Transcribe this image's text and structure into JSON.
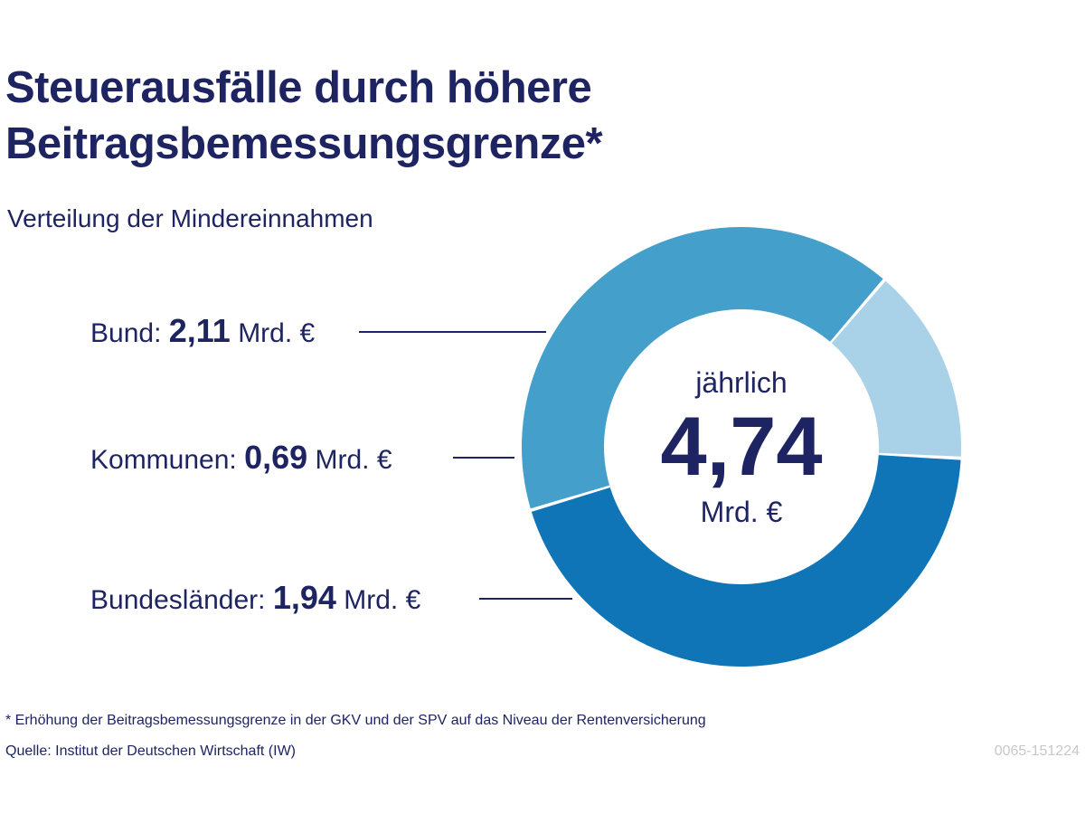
{
  "chart_data": {
    "type": "pie",
    "variant": "donut",
    "title": "Steuerausfälle durch höhere Beitragsbemessungsgrenze*",
    "subtitle": "Verteilung der Mindereinnahmen",
    "unit": "Mrd. €",
    "categories": [
      "Bund",
      "Bundesländer",
      "Kommunen"
    ],
    "values": [
      2.11,
      1.94,
      0.69
    ],
    "colors": [
      "#0f75b7",
      "#459fcb",
      "#a9d1e7"
    ],
    "total": {
      "prefix": "jährlich",
      "value": "4,74",
      "unit": "Mrd. €"
    },
    "labels": [
      {
        "name": "Bund:",
        "value": "2,11",
        "unit": "Mrd. €"
      },
      {
        "name": "Kommunen:",
        "value": "0,69",
        "unit": "Mrd. €"
      },
      {
        "name": "Bundesländer:",
        "value": "1,94",
        "unit": "Mrd. €"
      }
    ]
  },
  "title_line1": "Steuerausfälle durch höhere",
  "title_line2": "Beitragsbemessungsgrenze*",
  "footnote": "* Erhöhung der Beitragsbemessungsgrenze in der GKV und der SPV auf das Niveau der Rentenversicherung",
  "source": "Quelle: Institut der Deutschen Wirtschaft (IW)",
  "code": "0065-151224"
}
